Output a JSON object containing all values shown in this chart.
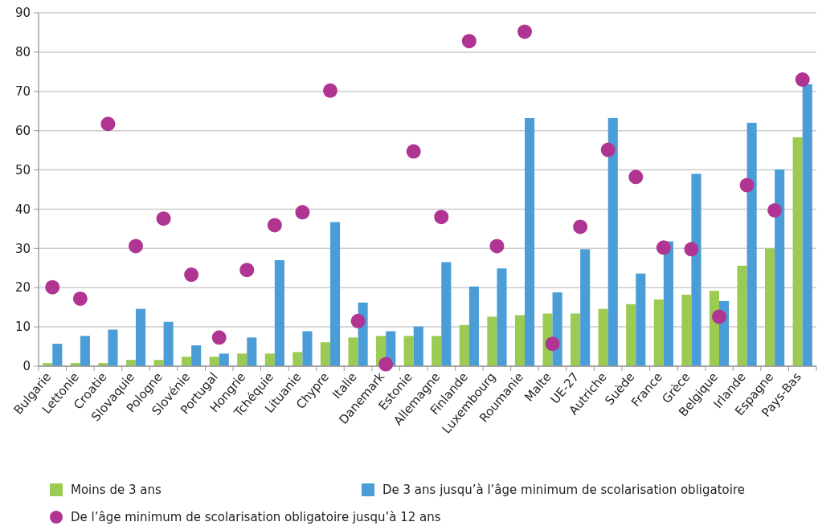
{
  "chart_data": {
    "type": "bar",
    "categories": [
      "Bulgarie",
      "Lettonie",
      "Croatie",
      "Slovaquie",
      "Pologne",
      "Slovénie",
      "Portugal",
      "Hongrie",
      "Tchéquie",
      "Lituanie",
      "Chypre",
      "Italie",
      "Danemark",
      "Estonie",
      "Allemagne",
      "Finlande",
      "Luxembourg",
      "Roumanie",
      "Malte",
      "UE-27",
      "Autriche",
      "Suède",
      "France",
      "Grèce",
      "Belgique",
      "Irlande",
      "Espagne",
      "Pays-Bas"
    ],
    "series": [
      {
        "name": "Moins de 3 ans",
        "color": "#9bcb53",
        "values": [
          0.8,
          0.8,
          0.8,
          1.6,
          1.6,
          2.4,
          2.4,
          3.2,
          3.2,
          3.6,
          6.1,
          7.3,
          7.7,
          7.7,
          7.7,
          10.5,
          12.6,
          13.0,
          13.4,
          13.4,
          14.6,
          15.8,
          17.0,
          18.2,
          19.2,
          25.6,
          30.0,
          58.3
        ]
      },
      {
        "name": "De 3 ans jusqu’à l’âge minimum de scolarisation obligatoire",
        "color": "#4a9dd6",
        "values": [
          5.7,
          7.7,
          9.3,
          14.6,
          11.3,
          5.3,
          3.2,
          7.3,
          27.0,
          8.9,
          36.7,
          16.2,
          8.9,
          10.1,
          26.5,
          20.3,
          24.9,
          63.2,
          18.8,
          29.8,
          63.2,
          23.6,
          31.8,
          49.0,
          16.6,
          62.0,
          50.1,
          71.8
        ]
      },
      {
        "name": "De l’âge minimum de scolarisation obligatoire jusqu’à 12 ans",
        "color": "#b03592",
        "type": "scatter",
        "values": [
          20.1,
          17.2,
          61.7,
          30.6,
          37.6,
          23.3,
          7.3,
          24.5,
          35.9,
          39.2,
          70.2,
          11.5,
          0.5,
          54.7,
          38.0,
          82.8,
          30.6,
          85.2,
          5.7,
          35.5,
          55.1,
          48.2,
          30.2,
          29.8,
          12.6,
          46.1,
          39.7,
          73.0
        ]
      }
    ],
    "ylim": [
      0,
      90
    ],
    "yticks": [
      0,
      10,
      20,
      30,
      40,
      50,
      60,
      70,
      80,
      90
    ],
    "grid": "y",
    "legend": "bottom",
    "marker": "circle"
  }
}
